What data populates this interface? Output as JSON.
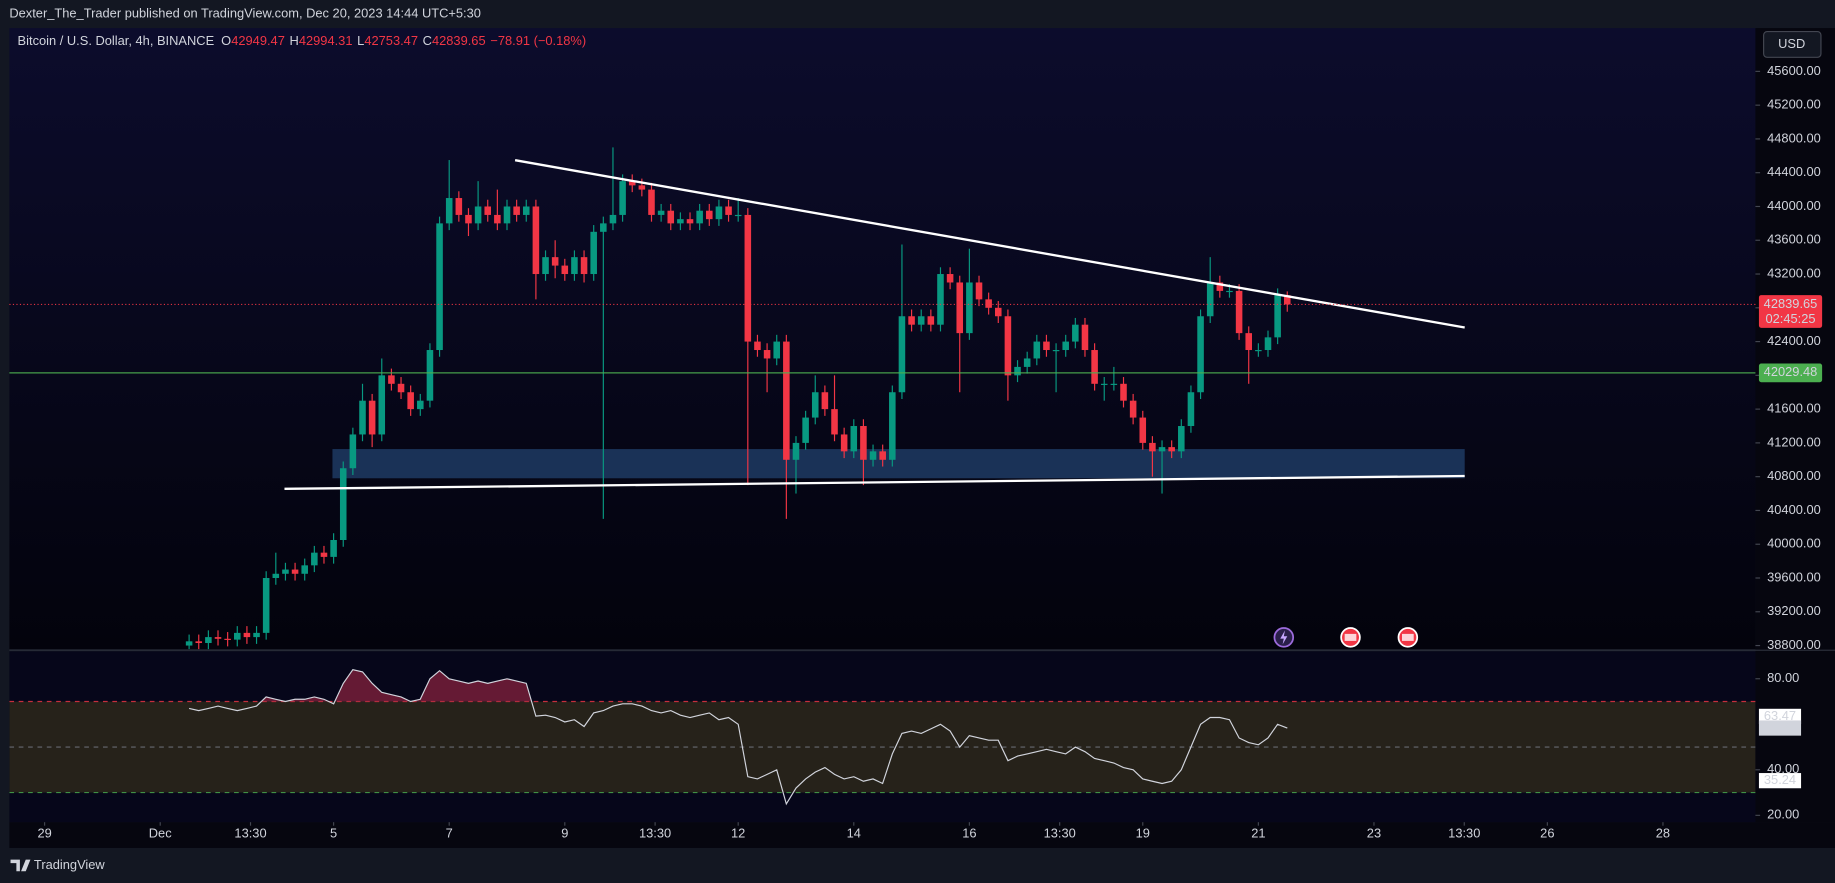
{
  "header": {
    "publisher": "Dexter_The_Trader published on TradingView.com, Dec 20, 2023 14:44 UTC+5:30"
  },
  "toolbar": {
    "currency": "USD"
  },
  "footer": {
    "brand": "TradingView"
  },
  "chart_data": [
    {
      "type": "candlestick",
      "title": "Bitcoin / U.S. Dollar, 4h, BINANCE",
      "legend_items": [
        {
          "key": "O",
          "value": 42949.47
        },
        {
          "key": "H",
          "value": 42994.31
        },
        {
          "key": "L",
          "value": 42753.47
        },
        {
          "key": "C",
          "value": 42839.65
        }
      ],
      "change": {
        "value": -78.91,
        "label": "−78.91 (−0.18%)"
      },
      "up_color": "#089981",
      "down_color": "#f23645",
      "x": [
        2.5,
        2.6667,
        2.8333,
        3,
        3.1667,
        3.3333,
        3.5,
        3.6667,
        3.8333,
        4,
        4.1667,
        4.3333,
        4.5,
        4.6667,
        4.8333,
        5,
        5.1667,
        5.3333,
        5.5,
        5.6667,
        5.8333,
        6,
        6.1667,
        6.3333,
        6.5,
        6.6667,
        6.8333,
        7,
        7.1667,
        7.3333,
        7.5,
        7.6667,
        7.8333,
        8,
        8.1667,
        8.3333,
        8.5,
        8.6667,
        8.8333,
        9,
        9.1667,
        9.3333,
        9.5,
        9.6667,
        9.8333,
        10,
        10.1667,
        10.3333,
        10.5,
        10.6667,
        10.8333,
        11,
        11.1667,
        11.3333,
        11.5,
        11.6667,
        11.8333,
        12,
        12.1667,
        12.3333,
        12.5,
        12.6667,
        12.8333,
        13,
        13.1667,
        13.3333,
        13.5,
        13.6667,
        13.8333,
        14,
        14.1667,
        14.3333,
        14.5,
        14.6667,
        14.8333,
        15,
        15.1667,
        15.3333,
        15.5,
        15.6667,
        15.8333,
        16,
        16.1667,
        16.3333,
        16.5,
        16.6667,
        16.8333,
        17,
        17.1667,
        17.3333,
        17.5,
        17.6667,
        17.8333,
        18,
        18.1667,
        18.3333,
        18.5,
        18.6667,
        18.8333,
        19,
        19.1667,
        19.3333,
        19.5,
        19.6667,
        19.8333,
        20,
        20.1667,
        20.3333,
        20.5,
        20.6667,
        20.8333,
        21,
        21.1667,
        21.3333,
        21.5
      ],
      "open": [
        38800,
        38850,
        38830,
        38900,
        38880,
        38870,
        38950,
        38900,
        38950,
        39600,
        39650,
        39700,
        39650,
        39750,
        39900,
        39850,
        40050,
        40900,
        41300,
        41700,
        41300,
        42000,
        41900,
        41800,
        41600,
        41700,
        42300,
        43800,
        44100,
        43900,
        43800,
        44000,
        43900,
        43800,
        44000,
        43900,
        44000,
        43200,
        43400,
        43300,
        43200,
        43400,
        43200,
        43700,
        43800,
        43900,
        44300,
        44250,
        44200,
        43900,
        43950,
        43800,
        43850,
        43800,
        43950,
        43850,
        44000,
        43900,
        43900,
        42400,
        42300,
        42200,
        42400,
        41000,
        41200,
        41500,
        41800,
        41600,
        41300,
        41100,
        41400,
        41000,
        41100,
        41000,
        41800,
        42700,
        42600,
        42700,
        42600,
        43200,
        43100,
        42500,
        43100,
        42900,
        42800,
        42700,
        42000,
        42100,
        42200,
        42400,
        42300,
        42300,
        42400,
        42600,
        42300,
        41900,
        41900,
        41900,
        41700,
        41500,
        41200,
        41100,
        41150,
        41100,
        41400,
        41800,
        42700,
        43100,
        43000,
        43000,
        42500,
        42300,
        42300,
        42450,
        42949.47
      ],
      "high": [
        38930,
        38930,
        38980,
        38980,
        38960,
        39030,
        39030,
        39030,
        39680,
        39900,
        39780,
        39780,
        39830,
        39980,
        39980,
        40130,
        40980,
        41380,
        41900,
        41780,
        42200,
        42080,
        41980,
        41880,
        41780,
        42380,
        43880,
        44550,
        44180,
        43980,
        44300,
        44080,
        44200,
        44080,
        44080,
        44080,
        44080,
        43480,
        43600,
        43380,
        43480,
        43480,
        43780,
        43880,
        44700,
        44380,
        44380,
        44330,
        44280,
        44030,
        44030,
        43930,
        43930,
        44030,
        44030,
        44080,
        44080,
        44100,
        43980,
        42480,
        42380,
        42480,
        42480,
        41280,
        41580,
        42000,
        41880,
        42000,
        41380,
        41480,
        41480,
        41180,
        41180,
        41880,
        43550,
        42780,
        42780,
        42780,
        43280,
        43280,
        43180,
        43500,
        43180,
        42980,
        42880,
        42780,
        42180,
        42280,
        42480,
        42480,
        42380,
        42480,
        42680,
        42680,
        42380,
        41980,
        42100,
        41980,
        41780,
        41580,
        41280,
        41230,
        41230,
        41480,
        41880,
        42780,
        43400,
        43180,
        43080,
        43080,
        42580,
        42380,
        42530,
        43030,
        42994.31
      ],
      "low": [
        38720,
        38750,
        38750,
        38800,
        38790,
        38790,
        38820,
        38820,
        38870,
        39520,
        39570,
        39570,
        39570,
        39670,
        39770,
        39770,
        39970,
        40820,
        41220,
        41150,
        41220,
        41820,
        41720,
        41520,
        41520,
        41620,
        42220,
        43720,
        43820,
        43650,
        43720,
        43820,
        43720,
        43720,
        43820,
        43820,
        42900,
        43120,
        43150,
        43120,
        43120,
        43100,
        43120,
        40300,
        43720,
        43820,
        44170,
        44120,
        43820,
        43820,
        43720,
        43720,
        43720,
        43720,
        43770,
        43770,
        43820,
        43820,
        40700,
        42220,
        41800,
        42120,
        40300,
        40600,
        41120,
        41420,
        41520,
        41220,
        41020,
        41020,
        40700,
        40920,
        40920,
        40920,
        41720,
        42520,
        42520,
        42520,
        42520,
        43020,
        41800,
        42420,
        42820,
        42720,
        42620,
        41700,
        41920,
        42020,
        42120,
        42220,
        41800,
        42220,
        42320,
        42220,
        41820,
        41700,
        41820,
        41620,
        41420,
        41120,
        40800,
        40600,
        41020,
        41020,
        41320,
        41720,
        42620,
        42920,
        42920,
        42420,
        41900,
        42220,
        42220,
        42370,
        42753.47
      ],
      "close": [
        38850,
        38830,
        38900,
        38880,
        38870,
        38950,
        38900,
        38950,
        39600,
        39650,
        39700,
        39650,
        39750,
        39900,
        39850,
        40050,
        40900,
        41300,
        41700,
        41300,
        42000,
        41900,
        41800,
        41600,
        41700,
        42300,
        43800,
        44100,
        43900,
        43800,
        44000,
        43900,
        43800,
        44000,
        43900,
        44000,
        43200,
        43400,
        43300,
        43200,
        43400,
        43200,
        43700,
        43800,
        43900,
        44300,
        44250,
        44200,
        43900,
        43950,
        43800,
        43850,
        43800,
        43950,
        43850,
        44000,
        43900,
        43900,
        42400,
        42300,
        42200,
        42400,
        41000,
        41200,
        41500,
        41800,
        41600,
        41300,
        41100,
        41400,
        41000,
        41100,
        41000,
        41800,
        42700,
        42600,
        42700,
        42600,
        43200,
        43100,
        42500,
        43100,
        42900,
        42800,
        42700,
        42000,
        42100,
        42200,
        42400,
        42300,
        42300,
        42400,
        42600,
        42300,
        41900,
        41900,
        41900,
        41700,
        41500,
        41200,
        41100,
        41150,
        41100,
        41400,
        41800,
        42700,
        43100,
        43000,
        43000,
        42500,
        42300,
        42300,
        42450,
        42949.47,
        42839.65
      ],
      "xlim": [
        -0.61,
        29.6
      ],
      "xticks": [
        {
          "value": 0,
          "label": "29"
        },
        {
          "value": 2,
          "label": "Dec"
        },
        {
          "value": 3.5625,
          "label": "13:30"
        },
        5,
        7,
        9,
        {
          "value": 10.5625,
          "label": "13:30"
        },
        12,
        14,
        16,
        {
          "value": 17.5625,
          "label": "13:30"
        },
        19,
        21,
        23,
        {
          "value": 24.5625,
          "label": "13:30"
        },
        26,
        28
      ],
      "ylim": [
        38758,
        46113
      ],
      "yticks": [
        {
          "value": 38800,
          "label": "38800.00"
        },
        {
          "value": 39200,
          "label": "39200.00"
        },
        {
          "value": 39600,
          "label": "39600.00"
        },
        {
          "value": 40000,
          "label": "40000.00"
        },
        {
          "value": 40400,
          "label": "40400.00"
        },
        {
          "value": 40800,
          "label": "40800.00"
        },
        {
          "value": 41200,
          "label": "41200.00"
        },
        {
          "value": 41600,
          "label": "41600.00"
        },
        {
          "value": 42000,
          "label": "42000.00"
        },
        {
          "value": 42400,
          "label": "42400.00"
        },
        {
          "value": 42800,
          "label": "42800.00"
        },
        {
          "value": 43200,
          "label": "43200.00"
        },
        {
          "value": 43600,
          "label": "43600.00"
        },
        {
          "value": 44000,
          "label": "44000.00"
        },
        {
          "value": 44400,
          "label": "44400.00"
        },
        {
          "value": 44800,
          "label": "44800.00"
        },
        {
          "value": 45200,
          "label": "45200.00"
        },
        {
          "value": 45600,
          "label": "45600.00"
        }
      ],
      "price_lines": [
        {
          "value": 42839.65,
          "color": "#f23645",
          "style": "dotted",
          "countdown": "02:45:25"
        },
        {
          "value": 42029.48,
          "color": "#4caf50",
          "style": "solid"
        }
      ],
      "trendlines": [
        {
          "x": [
            8.14,
            24.57
          ],
          "y": [
            44548,
            42567
          ],
          "color": "#ffffff"
        },
        {
          "x": [
            4.15,
            24.57
          ],
          "y": [
            40656,
            40808
          ],
          "color": "#ffffff"
        }
      ],
      "zones": [
        {
          "x": [
            4.98,
            24.57
          ],
          "y": [
            40781,
            41127
          ],
          "color": "#1f3b63"
        }
      ]
    },
    {
      "type": "line",
      "color": "#d1d4dc",
      "values": [
        67,
        66,
        67,
        68,
        67,
        66,
        67,
        68,
        72,
        71,
        70,
        71,
        71,
        72,
        71,
        69,
        78,
        84,
        83,
        78,
        74,
        73,
        72,
        70,
        71,
        80,
        83.5,
        80,
        79,
        78,
        79,
        78,
        79,
        80,
        79,
        78,
        63.6,
        64,
        63,
        61,
        62,
        59,
        65,
        66,
        68,
        69,
        69,
        68,
        66,
        65,
        66,
        64,
        63,
        64,
        65,
        62,
        63,
        60,
        37,
        36,
        38,
        40,
        25,
        32,
        36,
        39,
        41,
        38,
        36,
        37,
        35,
        36,
        34,
        47,
        56,
        57,
        56,
        58,
        60,
        57,
        50,
        55,
        54,
        53,
        53,
        44,
        46,
        47,
        48,
        49,
        48,
        47,
        50,
        48,
        45,
        44,
        43,
        41,
        40,
        36,
        35,
        34,
        35,
        40,
        50,
        60,
        63,
        63,
        62,
        54,
        52,
        51,
        54,
        60,
        58.35
      ],
      "ylim": [
        17,
        92
      ],
      "yticks": [
        {
          "value": 80,
          "label": "80.00"
        },
        {
          "value": 40,
          "label": "40.00"
        },
        {
          "value": 20,
          "label": "20.00"
        }
      ],
      "bands": [
        {
          "value": 70,
          "color": "#f23645"
        },
        {
          "value": 50,
          "color": "#787b86"
        },
        {
          "value": 30,
          "color": "#4caf50"
        }
      ],
      "band_fill": "#26221a",
      "overbought_fill": "#8e2440",
      "last_values": [
        {
          "value": 63.47,
          "bg": "#ffffff"
        },
        {
          "value": 58.35,
          "bg": "#d1d4dc"
        },
        {
          "value": 35.24,
          "bg": "#ffffff"
        }
      ]
    }
  ]
}
